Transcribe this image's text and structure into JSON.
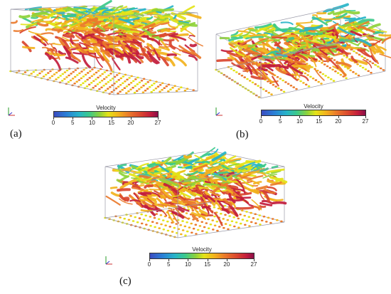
{
  "panels": [
    {
      "id": "a",
      "label": "(a)",
      "colorbar": {
        "title": "Velocity",
        "ticks": [
          "0",
          "5",
          "10",
          "15",
          "20",
          "27"
        ]
      }
    },
    {
      "id": "b",
      "label": "(b)",
      "colorbar": {
        "title": "Velocity",
        "ticks": [
          "0",
          "5",
          "10",
          "15",
          "20",
          "27"
        ]
      }
    },
    {
      "id": "c",
      "label": "(c)",
      "colorbar": {
        "title": "Velocity",
        "ticks": [
          "0",
          "5",
          "10",
          "15",
          "20",
          "27"
        ]
      }
    }
  ],
  "colors": {
    "colormap": [
      "#3b4cc0",
      "#2a7fd6",
      "#27b4c8",
      "#3cc98a",
      "#8ed23a",
      "#e3e317",
      "#f2b21d",
      "#ea7a2b",
      "#d9452f",
      "#c21d3d",
      "#8a0f49"
    ],
    "box_edge": "#9a9aa8"
  }
}
